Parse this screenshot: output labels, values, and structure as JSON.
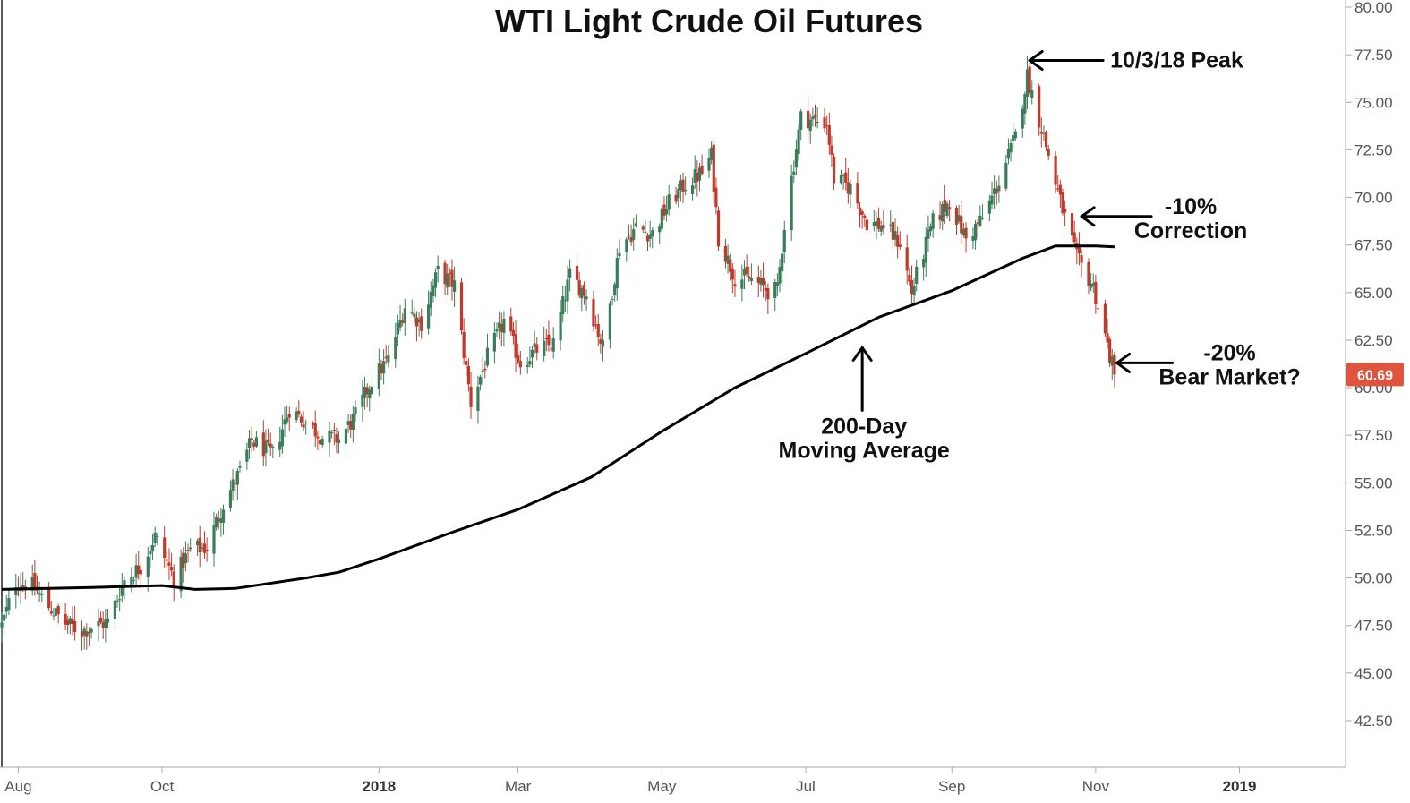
{
  "colors": {
    "up": "#3a7d5a",
    "down": "#c0392b",
    "ma": "#000000",
    "price_tag": "#e0533d",
    "axis": "#888888",
    "grid": "#ffffff"
  },
  "chart_data": {
    "type": "candlestick",
    "title": "WTI Light Crude Oil Futures",
    "xlabel": "",
    "ylabel": "",
    "ylim": [
      40,
      80
    ],
    "grid": false,
    "x_range": [
      "2017-07-25",
      "2019-02-15"
    ],
    "x_ticks": [
      {
        "label": "Aug",
        "date": "2017-08-01",
        "bold": false
      },
      {
        "label": "Oct",
        "date": "2017-10-01",
        "bold": false
      },
      {
        "label": "2018",
        "date": "2018-01-01",
        "bold": true
      },
      {
        "label": "Mar",
        "date": "2018-03-01",
        "bold": false
      },
      {
        "label": "May",
        "date": "2018-05-01",
        "bold": false
      },
      {
        "label": "Jul",
        "date": "2018-07-01",
        "bold": false
      },
      {
        "label": "Sep",
        "date": "2018-09-01",
        "bold": false
      },
      {
        "label": "Nov",
        "date": "2018-11-01",
        "bold": false
      },
      {
        "label": "2019",
        "date": "2019-01-01",
        "bold": true
      }
    ],
    "y_ticks": [
      "42.50",
      "45.00",
      "47.50",
      "50.00",
      "52.50",
      "55.00",
      "57.50",
      "60.00",
      "62.50",
      "65.00",
      "67.50",
      "70.00",
      "72.50",
      "75.00",
      "77.50",
      "80.00"
    ],
    "last_price": "60.69",
    "close_keypoints": [
      [
        "2017-07-25",
        47.5
      ],
      [
        "2017-07-31",
        49.8
      ],
      [
        "2017-08-07",
        49.6
      ],
      [
        "2017-08-14",
        48.5
      ],
      [
        "2017-08-21",
        47.6
      ],
      [
        "2017-08-28",
        47.2
      ],
      [
        "2017-09-01",
        47.4
      ],
      [
        "2017-09-08",
        47.7
      ],
      [
        "2017-09-15",
        49.9
      ],
      [
        "2017-09-22",
        50.6
      ],
      [
        "2017-09-28",
        52.2
      ],
      [
        "2017-10-06",
        50.0
      ],
      [
        "2017-10-13",
        51.5
      ],
      [
        "2017-10-20",
        51.6
      ],
      [
        "2017-10-27",
        53.9
      ],
      [
        "2017-11-03",
        55.6
      ],
      [
        "2017-11-08",
        57.2
      ],
      [
        "2017-11-17",
        56.5
      ],
      [
        "2017-11-24",
        58.9
      ],
      [
        "2017-12-01",
        58.2
      ],
      [
        "2017-12-08",
        57.4
      ],
      [
        "2017-12-15",
        57.3
      ],
      [
        "2017-12-22",
        58.5
      ],
      [
        "2017-12-29",
        60.4
      ],
      [
        "2018-01-05",
        61.5
      ],
      [
        "2018-01-12",
        64.3
      ],
      [
        "2018-01-19",
        63.4
      ],
      [
        "2018-01-26",
        66.1
      ],
      [
        "2018-02-02",
        65.4
      ],
      [
        "2018-02-09",
        59.2
      ],
      [
        "2018-02-16",
        61.6
      ],
      [
        "2018-02-23",
        63.5
      ],
      [
        "2018-03-02",
        61.3
      ],
      [
        "2018-03-09",
        62.0
      ],
      [
        "2018-03-16",
        62.3
      ],
      [
        "2018-03-23",
        65.9
      ],
      [
        "2018-03-30",
        64.9
      ],
      [
        "2018-04-06",
        62.1
      ],
      [
        "2018-04-13",
        67.4
      ],
      [
        "2018-04-20",
        68.4
      ],
      [
        "2018-04-27",
        68.1
      ],
      [
        "2018-05-04",
        69.7
      ],
      [
        "2018-05-11",
        70.7
      ],
      [
        "2018-05-18",
        71.3
      ],
      [
        "2018-05-22",
        72.2
      ],
      [
        "2018-05-25",
        67.9
      ],
      [
        "2018-06-01",
        65.8
      ],
      [
        "2018-06-08",
        65.7
      ],
      [
        "2018-06-15",
        65.1
      ],
      [
        "2018-06-19",
        65.1
      ],
      [
        "2018-06-22",
        68.6
      ],
      [
        "2018-06-29",
        74.2
      ],
      [
        "2018-07-03",
        74.1
      ],
      [
        "2018-07-10",
        73.9
      ],
      [
        "2018-07-13",
        71.0
      ],
      [
        "2018-07-20",
        70.5
      ],
      [
        "2018-07-27",
        68.7
      ],
      [
        "2018-08-03",
        68.5
      ],
      [
        "2018-08-10",
        67.6
      ],
      [
        "2018-08-15",
        65.0
      ],
      [
        "2018-08-17",
        65.9
      ],
      [
        "2018-08-24",
        68.7
      ],
      [
        "2018-08-31",
        69.8
      ],
      [
        "2018-09-07",
        67.8
      ],
      [
        "2018-09-14",
        68.9
      ],
      [
        "2018-09-21",
        70.8
      ],
      [
        "2018-09-28",
        73.2
      ],
      [
        "2018-10-03",
        76.4
      ],
      [
        "2018-10-10",
        73.2
      ],
      [
        "2018-10-17",
        69.8
      ],
      [
        "2018-10-24",
        66.8
      ],
      [
        "2018-10-31",
        65.3
      ],
      [
        "2018-11-07",
        61.7
      ],
      [
        "2018-11-09",
        60.69
      ]
    ],
    "moving_average": {
      "name": "200-Day Moving Average",
      "points": [
        [
          "2017-07-25",
          49.4
        ],
        [
          "2017-09-01",
          49.5
        ],
        [
          "2017-10-01",
          49.6
        ],
        [
          "2017-10-15",
          49.4
        ],
        [
          "2017-11-01",
          49.45
        ],
        [
          "2017-12-01",
          50.0
        ],
        [
          "2017-12-15",
          50.3
        ],
        [
          "2018-01-01",
          51.0
        ],
        [
          "2018-02-01",
          52.4
        ],
        [
          "2018-03-01",
          53.6
        ],
        [
          "2018-04-01",
          55.3
        ],
        [
          "2018-05-01",
          57.7
        ],
        [
          "2018-06-01",
          60.0
        ],
        [
          "2018-07-01",
          61.8
        ],
        [
          "2018-08-01",
          63.7
        ],
        [
          "2018-09-01",
          65.1
        ],
        [
          "2018-10-01",
          66.8
        ],
        [
          "2018-10-15",
          67.45
        ],
        [
          "2018-11-01",
          67.45
        ],
        [
          "2018-11-09",
          67.4
        ]
      ]
    },
    "annotations": [
      {
        "lines": [
          "10/3/18 Peak"
        ],
        "arrow_date": "2018-10-04",
        "arrow_value": 77.2
      },
      {
        "lines": [
          "-10%",
          "Correction"
        ],
        "arrow_date": "2018-10-26",
        "arrow_value": 69.0
      },
      {
        "lines": [
          "-20%",
          "Bear Market?"
        ],
        "arrow_date": "2018-11-10",
        "arrow_value": 61.3
      },
      {
        "lines": [
          "200-Day",
          "Moving Average"
        ],
        "arrow_date": "2018-07-25",
        "arrow_value": 62.1
      }
    ]
  }
}
